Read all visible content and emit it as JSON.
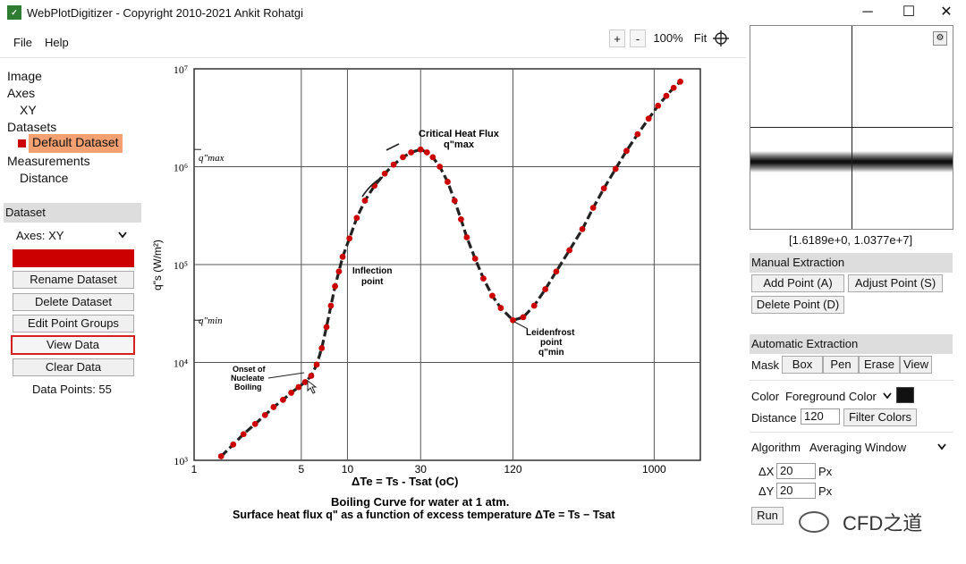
{
  "window": {
    "title": "WebPlotDigitizer - Copyright 2010-2021 Ankit Rohatgi",
    "app_icon": "wpd-icon",
    "controls": {
      "minimize": "─",
      "maximize": "☐",
      "close": "✕"
    }
  },
  "menu": {
    "file": "File",
    "help": "Help"
  },
  "zoom": {
    "plus": "+",
    "minus": "-",
    "level": "100%",
    "fit": "Fit"
  },
  "tree": {
    "image": "Image",
    "axes": "Axes",
    "axes_child": "XY",
    "datasets": "Datasets",
    "dataset_selected": "Default Dataset",
    "measurements": "Measurements",
    "measurement_child": "Distance"
  },
  "dataset_panel": {
    "header": "Dataset",
    "axes_select": "Axes:  XY",
    "display_color": "Display Color",
    "rename": "Rename Dataset",
    "delete": "Delete Dataset",
    "edit_groups": "Edit Point Groups",
    "view_data": "View Data",
    "clear_data": "Clear Data",
    "data_points": "Data Points: 55"
  },
  "zoom_view": {
    "coords": "[1.6189e+0, 1.0377e+7]"
  },
  "manual": {
    "header": "Manual Extraction",
    "add_point": "Add Point (A)",
    "adjust_point": "Adjust Point (S)",
    "delete_point": "Delete Point (D)"
  },
  "automatic": {
    "header": "Automatic Extraction",
    "mask_label": "Mask",
    "box": "Box",
    "pen": "Pen",
    "erase": "Erase",
    "view": "View",
    "color_label": "Color",
    "color_select": "Foreground Color",
    "distance_label": "Distance",
    "distance_value": "120",
    "filter_colors": "Filter Colors",
    "algorithm_label": "Algorithm",
    "algorithm_value": "Averaging Window",
    "dx_label": "ΔX",
    "dx_value": "20",
    "dx_unit": "Px",
    "dy_label": "ΔY",
    "dy_value": "20",
    "dy_unit": "Px",
    "run": "Run"
  },
  "watermark": "CFD之道",
  "colors": {
    "dataset": "#cc0000",
    "selected_bg": "#f4a070",
    "foreground": "#111111"
  },
  "chart_data": {
    "type": "line",
    "title": "Boiling Curve for water at 1 atm.",
    "subtitle": "Surface heat flux q\" as a function of excess temperature ΔTe = Ts − Tsat",
    "xlabel": "ΔTe = Ts - Tsat (oC)",
    "ylabel": "q\"s (W/m²)",
    "xscale": "log",
    "yscale": "log",
    "xlim": [
      1,
      2000
    ],
    "ylim": [
      1000,
      10000000
    ],
    "x_ticks": [
      "1",
      "5",
      "10",
      "30",
      "120",
      "1000"
    ],
    "y_ticks": [
      "10³",
      "10⁴",
      "10⁵",
      "10⁶",
      "10⁷"
    ],
    "y_markers": [
      "q\"max",
      "q\"min"
    ],
    "annotations": {
      "chf": "Critical Heat Flux",
      "chf_sub": "q\"max",
      "inflection": "Inflection",
      "inflection_sub": "point",
      "onset_1": "Onset of",
      "onset_2": "Nucleate",
      "onset_3": "Boiling",
      "leiden_1": "Leidenfrost",
      "leiden_2": "point",
      "leiden_3": "q\"min"
    },
    "series": [
      {
        "marker": "red-dot",
        "x": [
          1.5,
          1.8,
          2.1,
          2.5,
          2.9,
          3.3,
          3.8,
          4.3,
          4.8,
          5.3,
          5.8,
          6.3,
          6.8,
          7.3,
          7.8,
          8.3,
          8.8,
          9.3,
          10.3,
          11.5,
          13,
          15,
          17.5,
          20,
          23,
          26,
          30,
          33,
          36,
          40,
          45,
          50,
          55,
          60,
          68,
          77,
          88,
          100,
          120,
          140,
          165,
          195,
          230,
          280,
          340,
          400,
          470,
          560,
          660,
          780,
          920,
          1060,
          1200,
          1340,
          1480
        ],
        "y": [
          1100,
          1450,
          1850,
          2350,
          2900,
          3500,
          4150,
          4900,
          5600,
          6300,
          7300,
          9500,
          14000,
          23000,
          38000,
          60000,
          85000,
          120000,
          185000,
          300000,
          450000,
          640000,
          850000,
          1050000,
          1250000,
          1400000,
          1500000,
          1400000,
          1250000,
          1000000,
          700000,
          450000,
          290000,
          190000,
          115000,
          72000,
          48000,
          36000,
          27000,
          29000,
          38000,
          56000,
          85000,
          140000,
          230000,
          380000,
          600000,
          950000,
          1450000,
          2150000,
          3100000,
          4200000,
          5300000,
          6400000,
          7400000
        ]
      }
    ]
  }
}
